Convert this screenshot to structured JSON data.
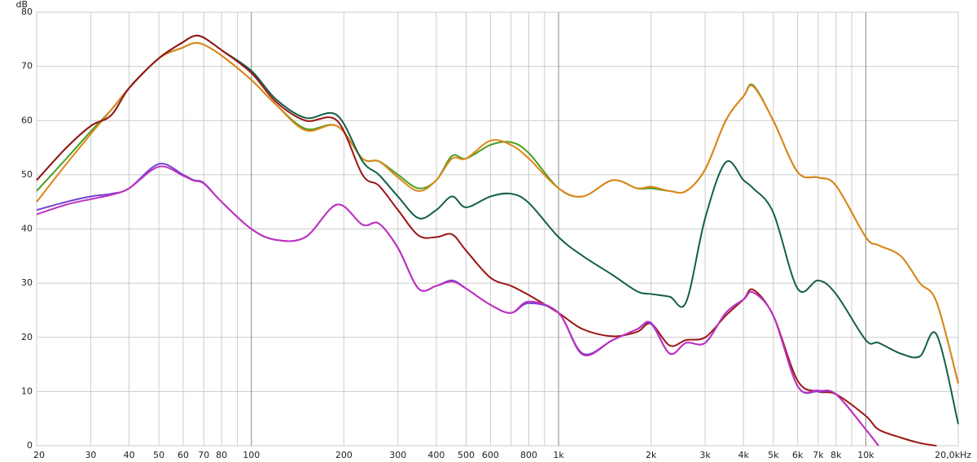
{
  "chart_data": {
    "type": "line",
    "ylabel": "dB",
    "xscale": "log",
    "grid": true,
    "x": [
      20,
      25,
      30,
      35,
      40,
      50,
      60,
      65,
      70,
      80,
      100,
      120,
      150,
      190,
      230,
      260,
      300,
      350,
      400,
      450,
      500,
      600,
      700,
      800,
      1000,
      1200,
      1500,
      1800,
      2000,
      2300,
      2600,
      3000,
      3500,
      4000,
      4300,
      5000,
      6000,
      7000,
      8000,
      10000,
      11000,
      13000,
      15000,
      17000,
      20000
    ],
    "xlim": [
      20,
      20000
    ],
    "xticks": [
      20,
      30,
      40,
      50,
      60,
      70,
      80,
      {
        "value": 90,
        "label": null
      },
      100,
      200,
      300,
      400,
      500,
      600,
      {
        "value": 700,
        "label": null
      },
      800,
      {
        "value": 900,
        "label": null
      },
      {
        "value": 1000,
        "label": "1k"
      },
      {
        "value": 2000,
        "label": "2k"
      },
      {
        "value": 3000,
        "label": "3k"
      },
      {
        "value": 4000,
        "label": "4k"
      },
      {
        "value": 5000,
        "label": "5k"
      },
      {
        "value": 6000,
        "label": "6k"
      },
      {
        "value": 7000,
        "label": "7k"
      },
      {
        "value": 8000,
        "label": "8k"
      },
      {
        "value": 9000,
        "label": null
      },
      {
        "value": 10000,
        "label": "10k"
      },
      {
        "value": 20000,
        "label": "20,0kHz"
      }
    ],
    "ylim": [
      0,
      80
    ],
    "yticks": [
      0,
      10,
      20,
      30,
      40,
      50,
      60,
      70,
      80
    ],
    "series": [
      {
        "color": "#4a9e1f",
        "values": [
          47,
          53,
          58,
          62,
          66,
          71.5,
          73.5,
          74.3,
          74,
          72,
          67.5,
          63,
          58.5,
          59,
          53,
          52.5,
          50,
          47.5,
          49,
          53.5,
          53,
          55.5,
          56,
          54,
          47.5,
          46,
          49,
          47.5,
          47.5,
          47,
          47,
          51,
          60,
          64.5,
          66.5,
          60,
          50.5,
          49.5,
          48,
          38.5,
          37,
          35,
          30,
          26.5,
          11.5
        ]
      },
      {
        "color": "#e0851a",
        "values": [
          45,
          52,
          57.5,
          62,
          66,
          71.5,
          73.5,
          74.3,
          74,
          72,
          67.5,
          63,
          58.2,
          59,
          53,
          52.5,
          49.5,
          47,
          49,
          53,
          53,
          56.3,
          55.5,
          53,
          47.5,
          46,
          49,
          47.5,
          47.8,
          47,
          47,
          51,
          60,
          64.5,
          66.3,
          60,
          50.5,
          49.5,
          48,
          38.5,
          37,
          35,
          30,
          26.5,
          11.5
        ]
      },
      {
        "color": "#135f45",
        "values": [
          49,
          55,
          59,
          61,
          66,
          71.5,
          74.5,
          75.6,
          75.3,
          73,
          69.2,
          64,
          60.5,
          61,
          52.5,
          50,
          46,
          42,
          43.5,
          46,
          44,
          46,
          46.5,
          44.8,
          38.5,
          35,
          31.5,
          28.5,
          28,
          27.5,
          26.5,
          42,
          52.3,
          49,
          47.5,
          43,
          29,
          30.5,
          28,
          19.5,
          19,
          17,
          16.5,
          20.5,
          4
        ]
      },
      {
        "color": "#9a1515",
        "values": [
          49,
          55,
          59,
          61,
          66,
          71.5,
          74.5,
          75.6,
          75.3,
          73,
          68.8,
          63.5,
          60,
          60,
          50,
          48,
          43.5,
          38.8,
          38.5,
          39,
          36,
          31,
          29.5,
          27.8,
          24.5,
          21.5,
          20.2,
          21,
          22.5,
          18.5,
          19.5,
          20,
          24,
          27,
          28.8,
          24,
          12,
          10,
          9.5,
          5.5,
          3,
          1.5,
          0.5,
          0,
          null
        ]
      },
      {
        "color": "#7040d0",
        "values": [
          43.5,
          45,
          46,
          46.5,
          47.5,
          52,
          50,
          49,
          48.5,
          45,
          40,
          38,
          38.5,
          44.5,
          40.8,
          41,
          36.5,
          29,
          29.5,
          30.5,
          29,
          26,
          24.5,
          26.3,
          24.5,
          17,
          19.5,
          21.5,
          22.5,
          17,
          19,
          19,
          24.5,
          27,
          28.3,
          24,
          11,
          10,
          9.5,
          3,
          0,
          null,
          null,
          null,
          null
        ]
      },
      {
        "color": "#c030c0",
        "values": [
          42.7,
          44.5,
          45.5,
          46.3,
          47.5,
          51.5,
          49.8,
          48.9,
          48.4,
          45,
          40,
          38,
          38.5,
          44.5,
          40.8,
          41,
          36.5,
          29,
          29.5,
          30.3,
          29,
          26,
          24.5,
          26.6,
          24.5,
          16.8,
          19.5,
          21.5,
          22.7,
          17,
          19,
          19,
          24.5,
          27,
          28.3,
          24,
          11,
          10.2,
          9.5,
          3,
          0,
          null,
          null,
          null,
          null
        ]
      }
    ]
  }
}
